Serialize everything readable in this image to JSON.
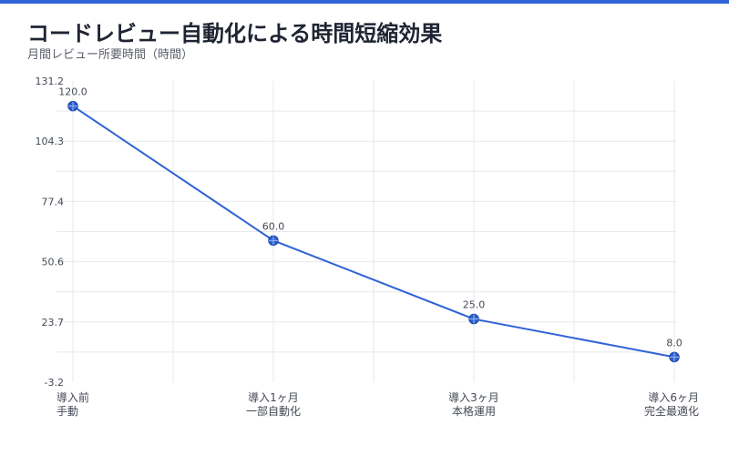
{
  "header": {
    "title": "コードレビュー自動化による時間短縮効果",
    "subtitle": "月間レビュー所要時間（時間）"
  },
  "colors": {
    "accent": "#2f63d6",
    "grid": "#e6e8ec",
    "tick_text": "#444a55",
    "label_text": "#444a55"
  },
  "chart_data": {
    "type": "line",
    "title": "コードレビュー自動化による時間短縮効果",
    "subtitle": "月間レビュー所要時間（時間）",
    "xlabel": "",
    "ylabel": "",
    "categories": [
      [
        "導入前",
        "手動"
      ],
      [
        "導入1ヶ月",
        "一部自動化"
      ],
      [
        "導入3ヶ月",
        "本格運用"
      ],
      [
        "導入6ヶ月",
        "完全最適化"
      ]
    ],
    "series": [
      {
        "values": [
          120.0,
          60.0,
          25.0,
          8.0
        ]
      }
    ],
    "data_labels": [
      "120.0",
      "60.0",
      "25.0",
      "8.0"
    ],
    "y_ticks": [
      "131.2",
      "104.3",
      "77.4",
      "50.6",
      "23.7",
      "-3.2"
    ],
    "ylim": [
      -3.2,
      131.2
    ],
    "grid": true,
    "legend": "none"
  }
}
